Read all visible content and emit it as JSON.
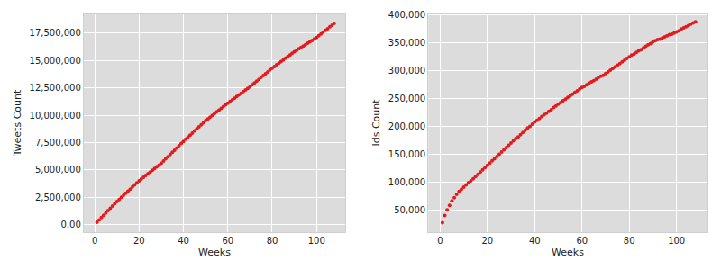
{
  "chart_data": [
    {
      "type": "scatter",
      "x_label": "Weeks",
      "y_label": "Tweets Count",
      "color": "#e31a1c",
      "marker": "circle",
      "grid": true,
      "x": [
        1,
        2,
        3,
        4,
        5,
        6,
        7,
        8,
        9,
        10,
        11,
        12,
        13,
        14,
        15,
        16,
        17,
        18,
        19,
        20,
        21,
        22,
        23,
        24,
        25,
        26,
        27,
        28,
        29,
        30,
        31,
        32,
        33,
        34,
        35,
        36,
        37,
        38,
        39,
        40,
        41,
        42,
        43,
        44,
        45,
        46,
        47,
        48,
        49,
        50,
        51,
        52,
        53,
        54,
        55,
        56,
        57,
        58,
        59,
        60,
        61,
        62,
        63,
        64,
        65,
        66,
        67,
        68,
        69,
        70,
        71,
        72,
        73,
        74,
        75,
        76,
        77,
        78,
        79,
        80,
        81,
        82,
        83,
        84,
        85,
        86,
        87,
        88,
        89,
        90,
        91,
        92,
        93,
        94,
        95,
        96,
        97,
        98,
        99,
        100,
        101,
        102,
        103,
        104,
        105,
        106,
        107,
        108
      ],
      "values": [
        200000,
        420000,
        630000,
        840000,
        1050000,
        1270000,
        1480000,
        1680000,
        1890000,
        2100000,
        2290000,
        2480000,
        2670000,
        2860000,
        3050000,
        3240000,
        3430000,
        3620000,
        3810000,
        4000000,
        4160000,
        4320000,
        4480000,
        4640000,
        4800000,
        4960000,
        5120000,
        5280000,
        5440000,
        5600000,
        5800000,
        6000000,
        6200000,
        6400000,
        6600000,
        6800000,
        7000000,
        7200000,
        7400000,
        7600000,
        7790000,
        7980000,
        8170000,
        8360000,
        8550000,
        8740000,
        8930000,
        9120000,
        9310000,
        9500000,
        9660000,
        9820000,
        9980000,
        10140000,
        10300000,
        10460000,
        10620000,
        10780000,
        10940000,
        11100000,
        11250000,
        11400000,
        11550000,
        11700000,
        11850000,
        12000000,
        12150000,
        12300000,
        12450000,
        12600000,
        12770000,
        12940000,
        13110000,
        13280000,
        13450000,
        13620000,
        13790000,
        13960000,
        14130000,
        14300000,
        14450000,
        14600000,
        14750000,
        14900000,
        15050000,
        15200000,
        15350000,
        15500000,
        15650000,
        15800000,
        15930000,
        16060000,
        16190000,
        16320000,
        16450000,
        16580000,
        16710000,
        16840000,
        16970000,
        17100000,
        17260000,
        17430000,
        17590000,
        17750000,
        17910000,
        18080000,
        18240000,
        18400000
      ],
      "xlim": [
        -5,
        113
      ],
      "xticks": [
        0,
        20,
        40,
        60,
        80,
        100
      ],
      "ylim": [
        -700000,
        19300000
      ],
      "yticks": [
        {
          "value": 0,
          "label": "0.00"
        },
        {
          "value": 2500000,
          "label": "2,500,000"
        },
        {
          "value": 5000000,
          "label": "5,000,000"
        },
        {
          "value": 7500000,
          "label": "7,500,000"
        },
        {
          "value": 10000000,
          "label": "10,000,000"
        },
        {
          "value": 12500000,
          "label": "12,500,000"
        },
        {
          "value": 15000000,
          "label": "15,000,000"
        },
        {
          "value": 17500000,
          "label": "17,500,000"
        }
      ]
    },
    {
      "type": "scatter",
      "x_label": "Weeks",
      "y_label": "Ids Count",
      "color": "#e31a1c",
      "marker": "circle",
      "grid": true,
      "x": [
        1,
        2,
        3,
        4,
        5,
        6,
        7,
        8,
        9,
        10,
        11,
        12,
        13,
        14,
        15,
        16,
        17,
        18,
        19,
        20,
        21,
        22,
        23,
        24,
        25,
        26,
        27,
        28,
        29,
        30,
        31,
        32,
        33,
        34,
        35,
        36,
        37,
        38,
        39,
        40,
        41,
        42,
        43,
        44,
        45,
        46,
        47,
        48,
        49,
        50,
        51,
        52,
        53,
        54,
        55,
        56,
        57,
        58,
        59,
        60,
        61,
        62,
        63,
        64,
        65,
        66,
        67,
        68,
        69,
        70,
        71,
        72,
        73,
        74,
        75,
        76,
        77,
        78,
        79,
        80,
        81,
        82,
        83,
        84,
        85,
        86,
        87,
        88,
        89,
        90,
        91,
        92,
        93,
        94,
        95,
        96,
        97,
        98,
        99,
        100,
        101,
        102,
        103,
        104,
        105,
        106,
        107,
        108
      ],
      "values": [
        27000,
        40000,
        50000,
        58000,
        66000,
        72000,
        78000,
        83000,
        87000,
        91000,
        95000,
        99000,
        102000,
        106000,
        110000,
        114000,
        118000,
        122000,
        126000,
        130000,
        134000,
        138000,
        142000,
        146000,
        150000,
        154000,
        158000,
        162000,
        166000,
        170000,
        174000,
        178000,
        181000,
        185000,
        189000,
        193000,
        197000,
        200000,
        204000,
        208000,
        211000,
        214000,
        218000,
        221000,
        224000,
        227000,
        230000,
        234000,
        237000,
        240000,
        243000,
        246000,
        249000,
        252000,
        255000,
        258000,
        261000,
        264000,
        267000,
        270000,
        272000,
        275000,
        278000,
        280000,
        282000,
        285000,
        288000,
        290000,
        292000,
        295000,
        298000,
        301000,
        304000,
        307000,
        310000,
        313000,
        316000,
        319000,
        322000,
        325000,
        328000,
        330000,
        333000,
        336000,
        338000,
        341000,
        344000,
        347000,
        349000,
        352000,
        354000,
        356000,
        357000,
        359000,
        361000,
        363000,
        365000,
        366000,
        368000,
        370000,
        372000,
        375000,
        377000,
        379000,
        381000,
        384000,
        386000,
        388000
      ],
      "xlim": [
        -5,
        113
      ],
      "xticks": [
        0,
        20,
        40,
        60,
        80,
        100
      ],
      "ylim": [
        10000,
        403000
      ],
      "yticks": [
        {
          "value": 50000,
          "label": "50,000"
        },
        {
          "value": 100000,
          "label": "100,000"
        },
        {
          "value": 150000,
          "label": "150,000"
        },
        {
          "value": 200000,
          "label": "200,000"
        },
        {
          "value": 250000,
          "label": "250,000"
        },
        {
          "value": 300000,
          "label": "300,000"
        },
        {
          "value": 350000,
          "label": "350,000"
        },
        {
          "value": 400000,
          "label": "400,000"
        }
      ]
    }
  ]
}
